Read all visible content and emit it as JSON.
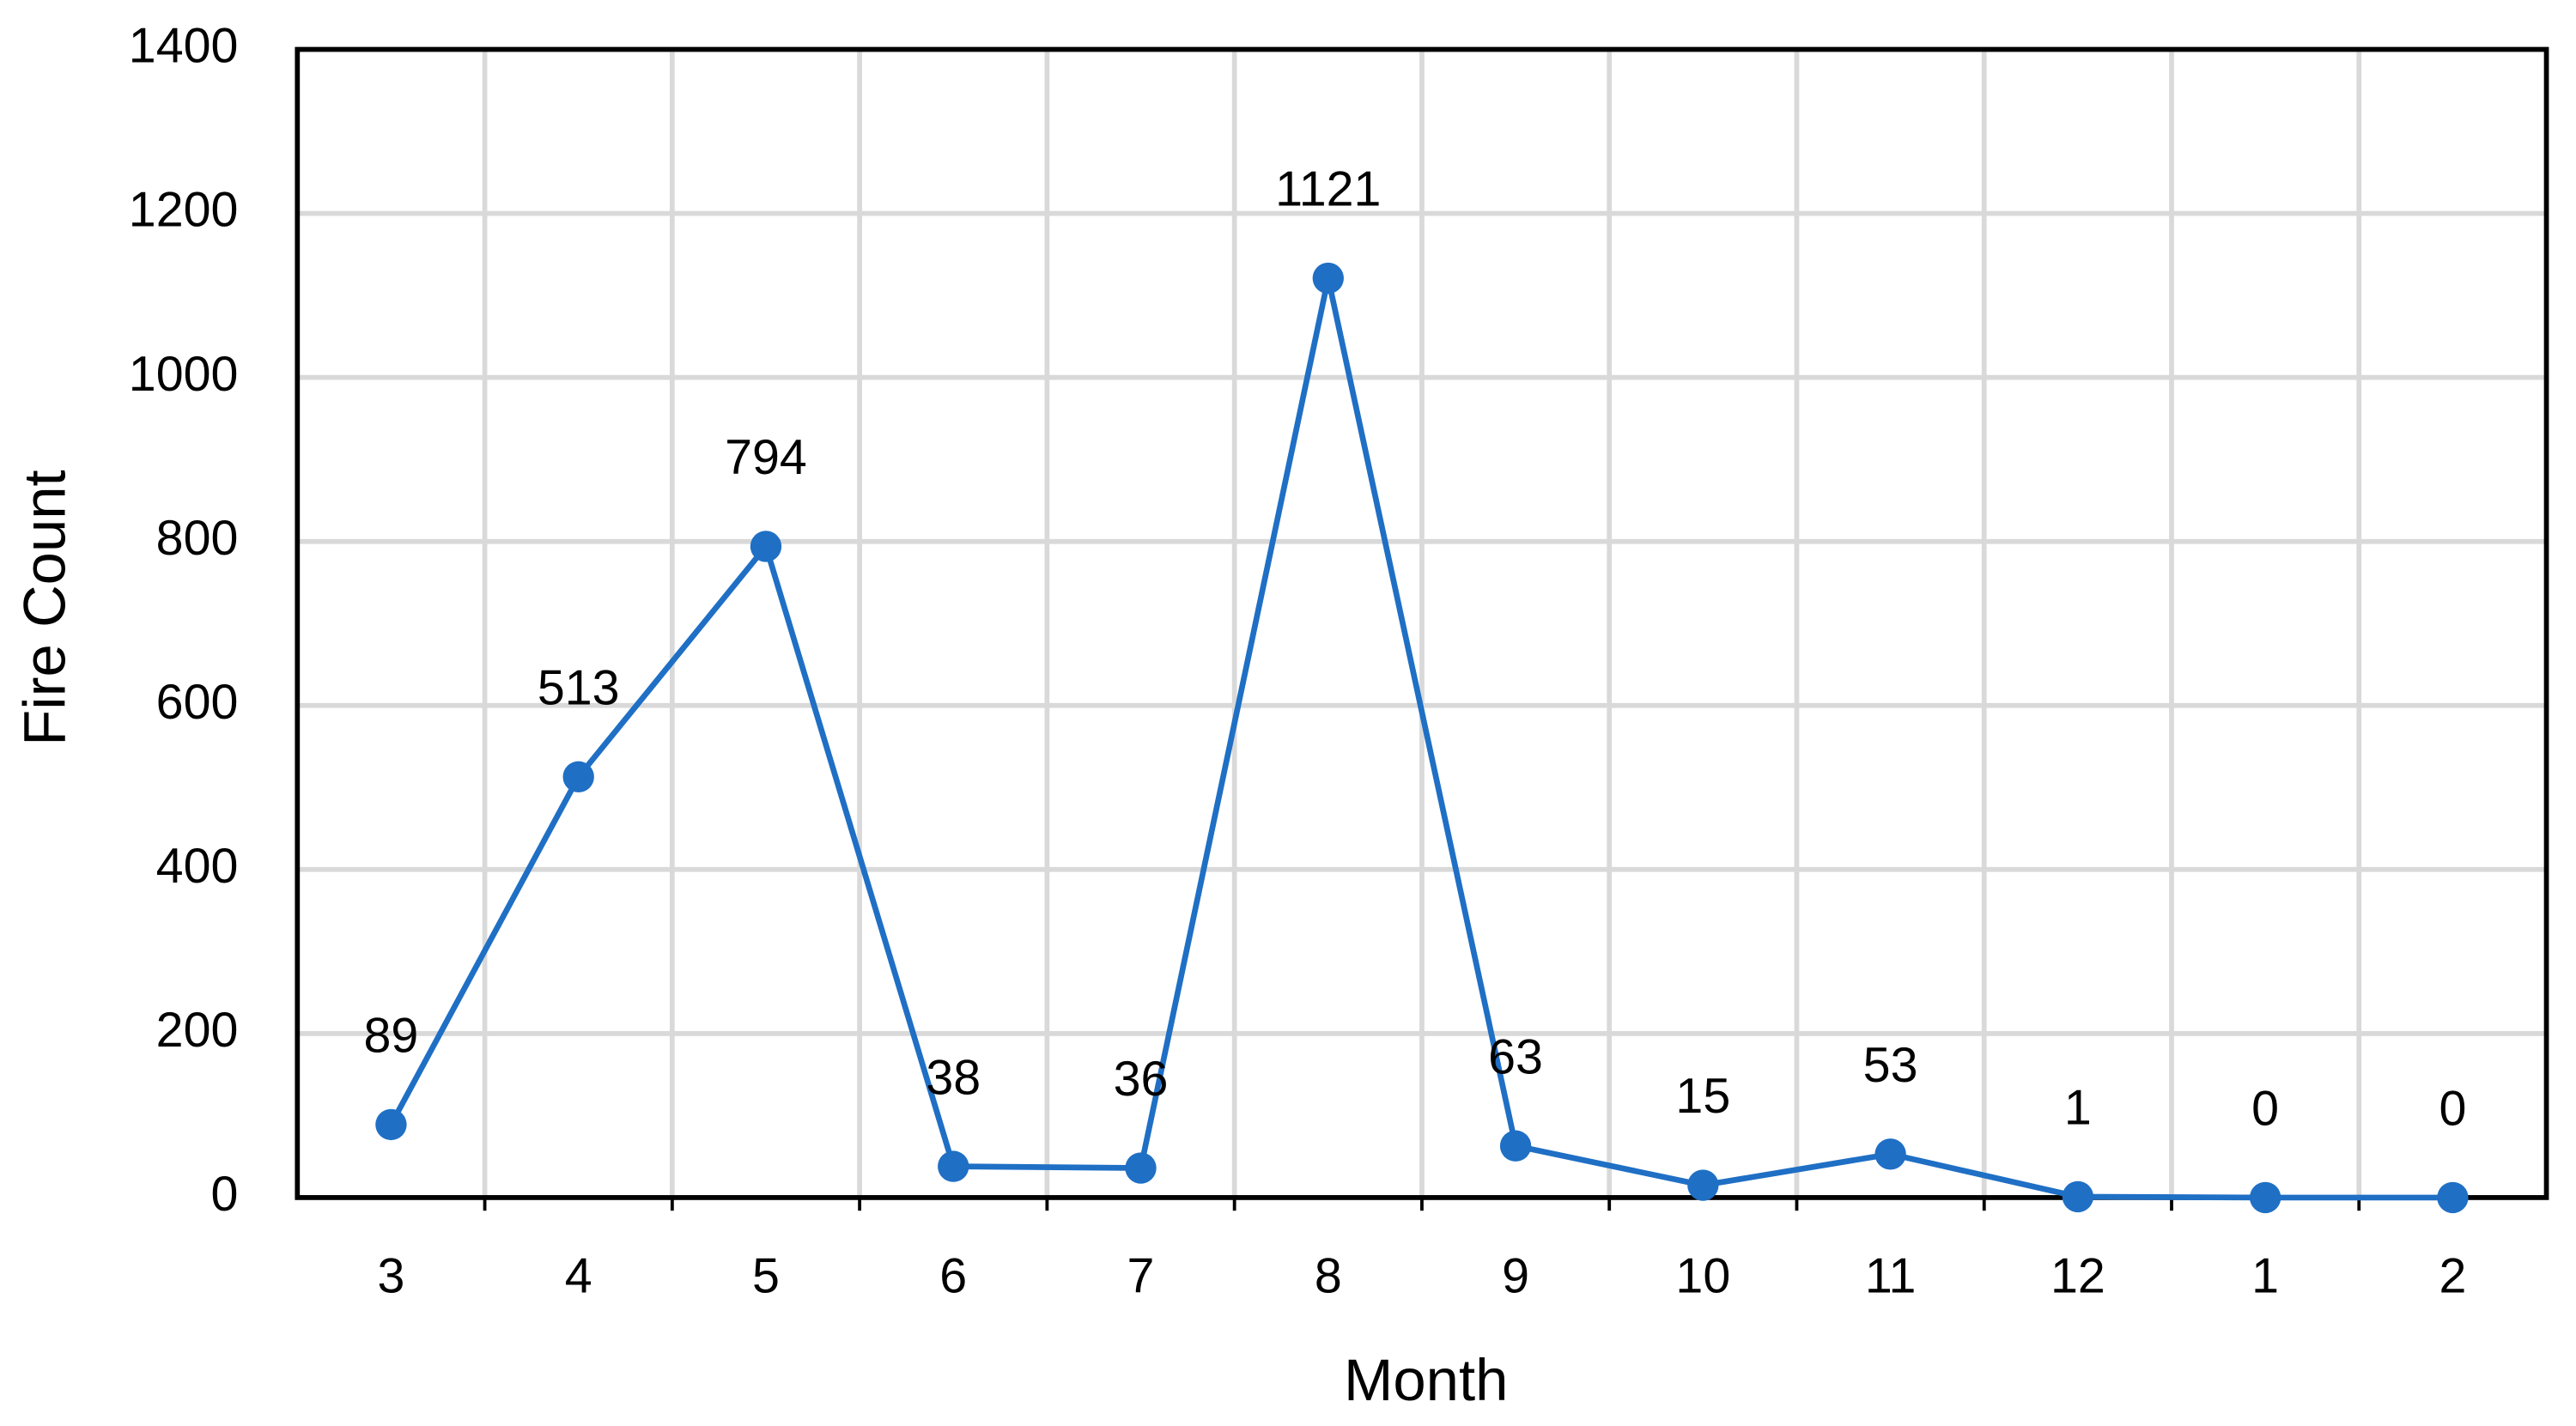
{
  "chart_data": {
    "type": "line",
    "x_label": "Month",
    "y_label": "Fire Count",
    "categories": [
      "3",
      "4",
      "5",
      "6",
      "7",
      "8",
      "9",
      "10",
      "11",
      "12",
      "1",
      "2"
    ],
    "series": [
      {
        "name": "Fire Count",
        "color": "#1f6fc5",
        "values": [
          89,
          513,
          794,
          38,
          36,
          1121,
          63,
          15,
          53,
          1,
          0,
          0
        ]
      }
    ],
    "ylim": [
      0,
      1400
    ],
    "yticks": [
      0,
      200,
      400,
      600,
      800,
      1000,
      1200,
      1400
    ],
    "grid": true,
    "data_labels": true
  }
}
